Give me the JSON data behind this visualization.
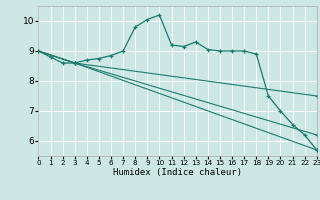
{
  "title": "",
  "xlabel": "Humidex (Indice chaleur)",
  "xlim": [
    0,
    23
  ],
  "ylim": [
    5.5,
    10.5
  ],
  "yticks": [
    6,
    7,
    8,
    9,
    10
  ],
  "xticks": [
    0,
    1,
    2,
    3,
    4,
    5,
    6,
    7,
    8,
    9,
    10,
    11,
    12,
    13,
    14,
    15,
    16,
    17,
    18,
    19,
    20,
    21,
    22,
    23
  ],
  "bg_color": "#cde8e4",
  "line_color": "#1a7a6e",
  "grid_color": "#ffffff",
  "line1_x": [
    0,
    1,
    2,
    3,
    4,
    5,
    6,
    7,
    8,
    9,
    10,
    11,
    12,
    13,
    14,
    15,
    16,
    17,
    18,
    19,
    20,
    21,
    22,
    23
  ],
  "line1_y": [
    9.0,
    8.8,
    8.6,
    8.6,
    8.7,
    8.75,
    8.85,
    9.0,
    9.8,
    10.05,
    10.2,
    9.2,
    9.15,
    9.3,
    9.05,
    9.0,
    9.0,
    9.0,
    8.9,
    7.5,
    7.0,
    6.55,
    6.2,
    5.7
  ],
  "line2_x": [
    0,
    3,
    23
  ],
  "line2_y": [
    9.0,
    8.6,
    5.7
  ],
  "line3_x": [
    0,
    3,
    23
  ],
  "line3_y": [
    9.0,
    8.6,
    6.2
  ],
  "line4_x": [
    0,
    3,
    23
  ],
  "line4_y": [
    9.0,
    8.6,
    7.5
  ]
}
